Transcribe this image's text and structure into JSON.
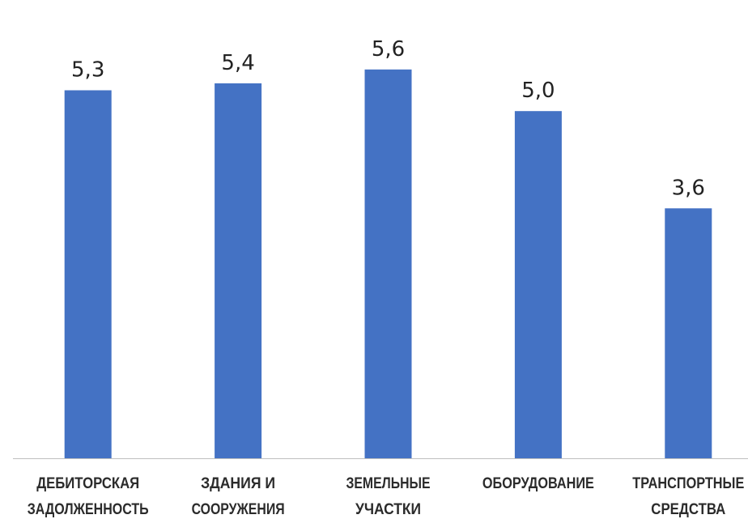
{
  "chart_data": {
    "type": "bar",
    "title": "",
    "xlabel": "",
    "ylabel": "",
    "categories": [
      [
        "ДЕБИТОРСКАЯ",
        "ЗАДОЛЖЕННОСТЬ"
      ],
      [
        "ЗДАНИЯ И",
        "СООРУЖЕНИЯ"
      ],
      [
        "ЗЕМЕЛЬНЫЕ",
        "УЧАСТКИ"
      ],
      [
        "ОБОРУДОВАНИЕ"
      ],
      [
        "ТРАНСПОРТНЫЕ",
        "СРЕДСТВА"
      ]
    ],
    "values": [
      5.3,
      5.4,
      5.6,
      5.0,
      3.6
    ],
    "value_labels": [
      "5,3",
      "5,4",
      "5,6",
      "5,0",
      "3,6"
    ],
    "ylim": [
      0,
      6.6
    ],
    "grid": false,
    "legend": "none",
    "bar_color": "#4472C4",
    "axis_color": "#BFBFBF"
  }
}
